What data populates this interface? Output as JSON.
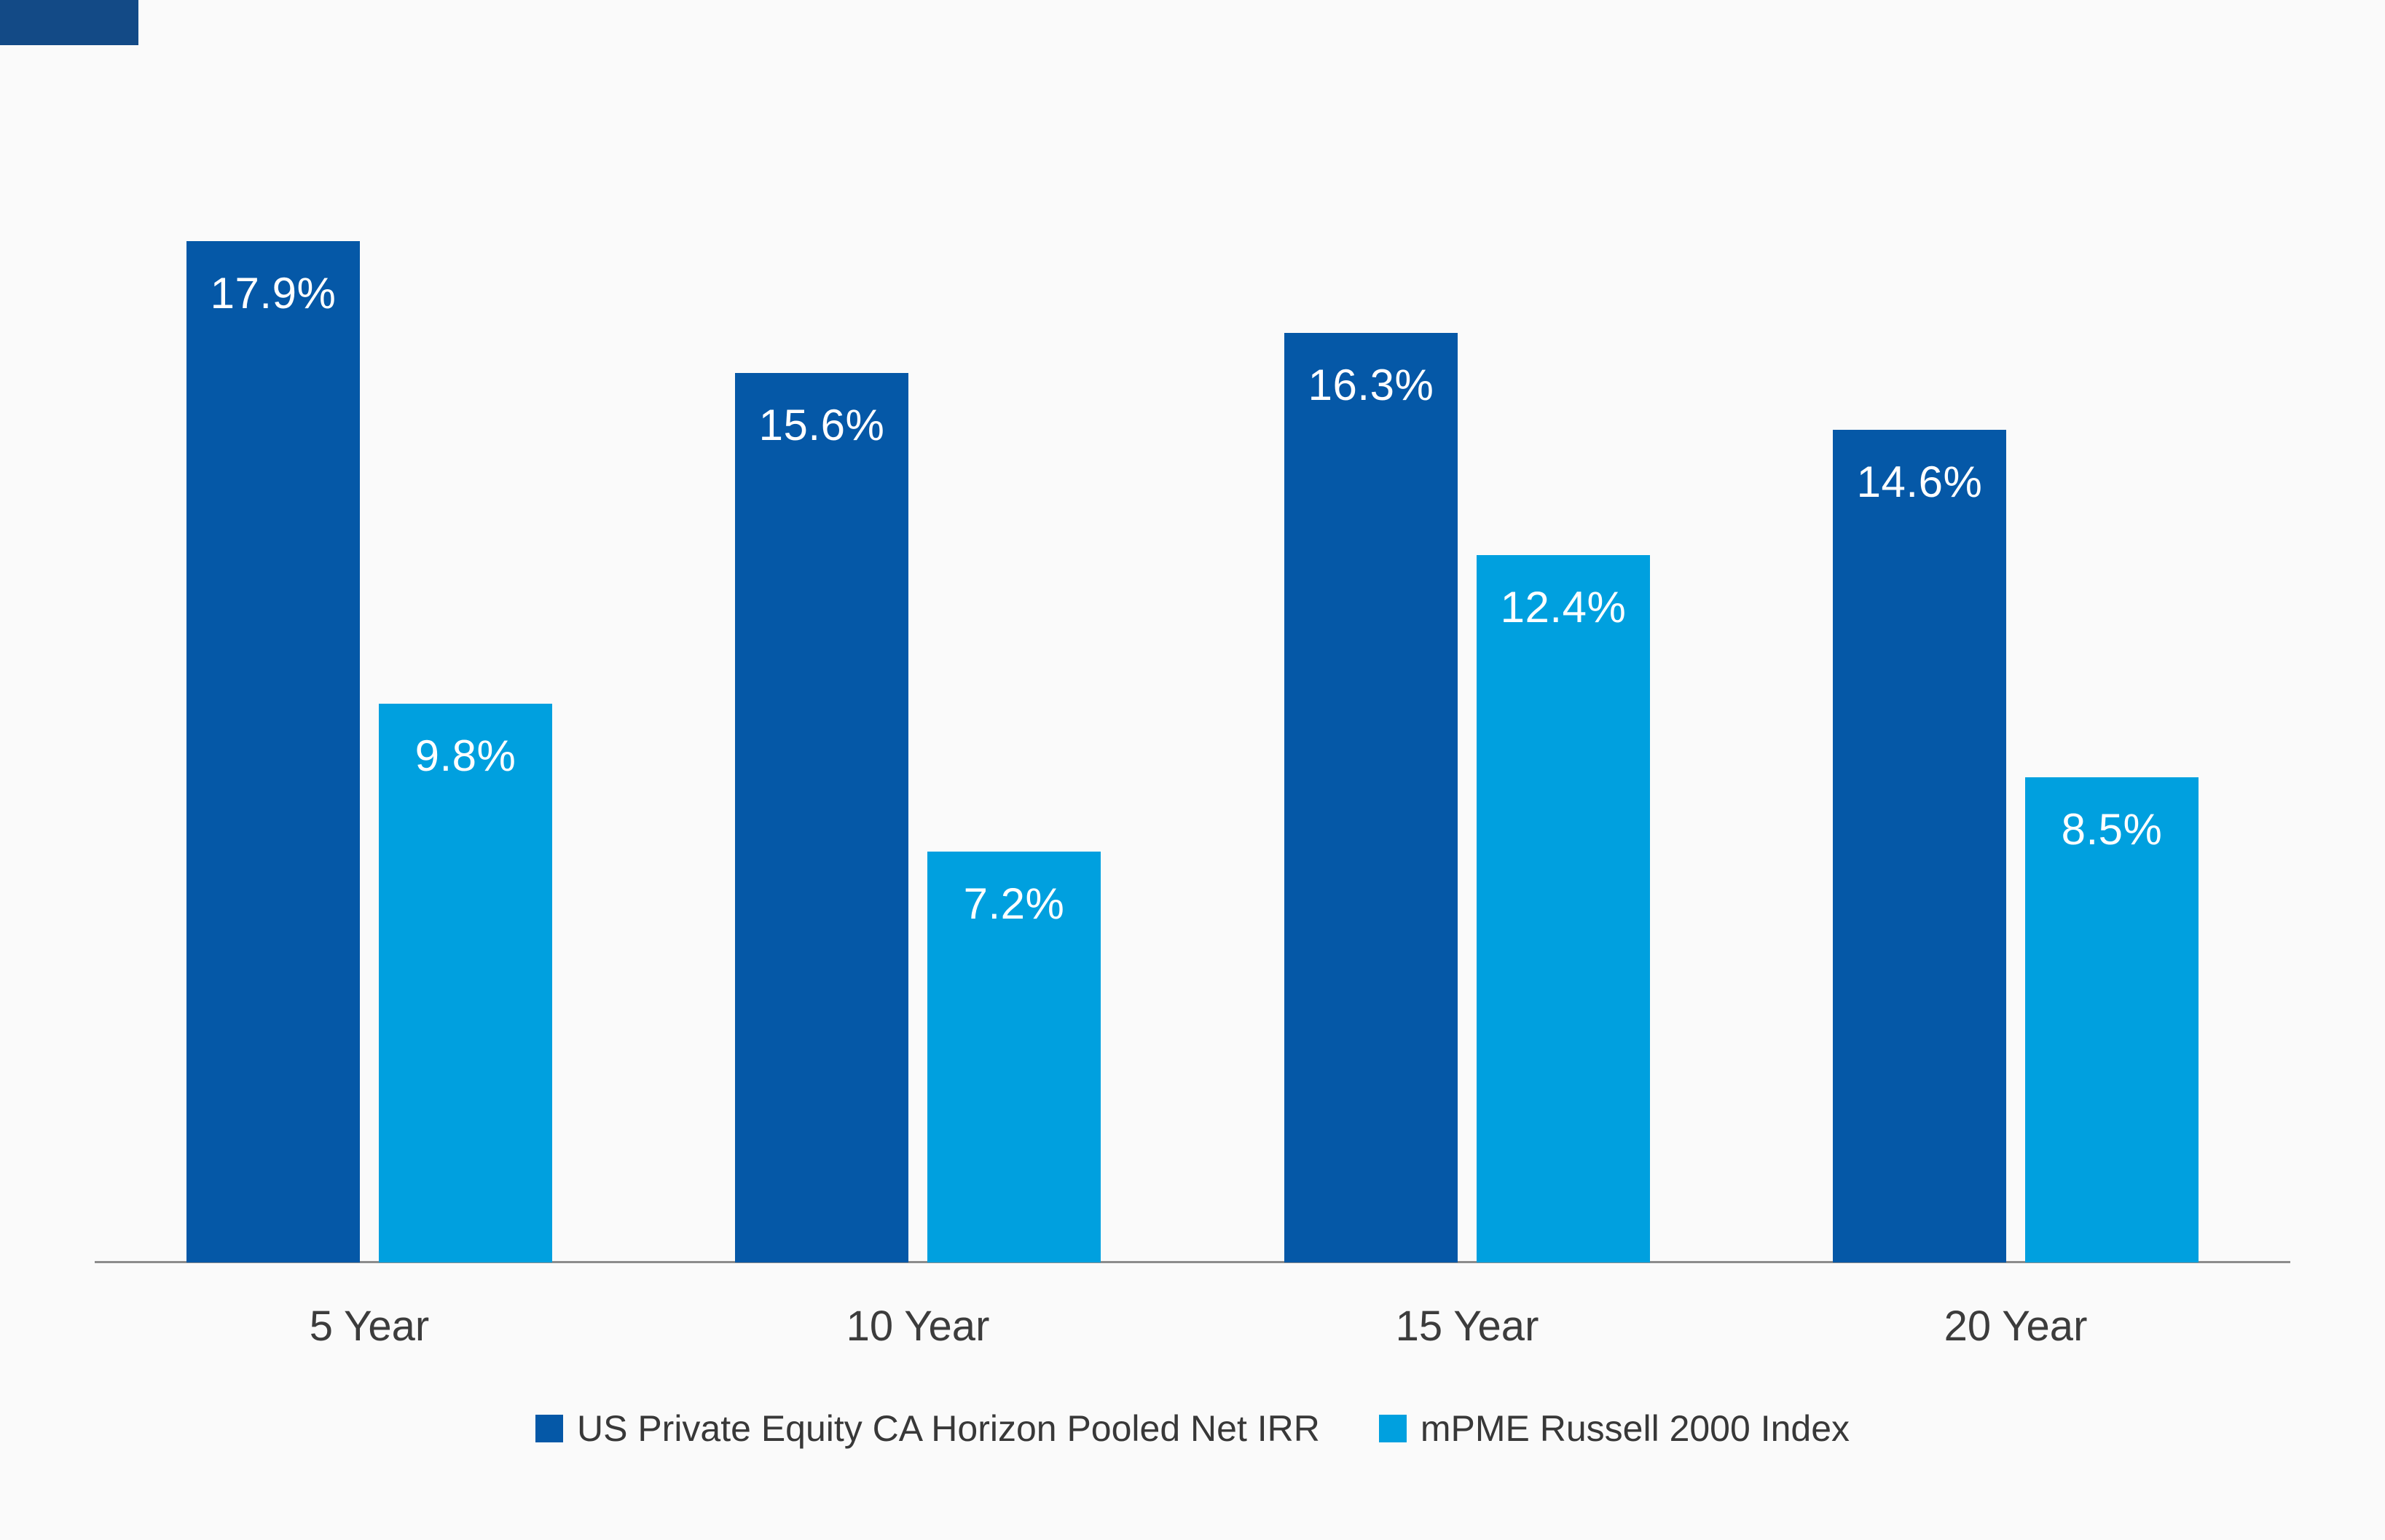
{
  "canvas": {
    "background": "#FAFAFA",
    "corner_mark_color": "#134A86"
  },
  "chart_data": {
    "type": "bar",
    "categories": [
      "5 Year",
      "10 Year",
      "15 Year",
      "20 Year"
    ],
    "series": [
      {
        "name": "US Private Equity CA Horizon Pooled Net IRR",
        "color": "#0558A7",
        "values": [
          17.9,
          15.6,
          16.3,
          14.6
        ],
        "value_labels": [
          "17.9%",
          "15.6%",
          "16.3%",
          "14.6%"
        ]
      },
      {
        "name": "mPME Russell 2000 Index",
        "color": "#00A0DF",
        "values": [
          9.8,
          7.2,
          12.4,
          8.5
        ],
        "value_labels": [
          "9.8%",
          "7.2%",
          "12.4%",
          "8.5%"
        ]
      }
    ],
    "title": "",
    "xlabel": "",
    "ylabel": "",
    "ylim": [
      0,
      22
    ],
    "grid": false,
    "y_axis_visible": false,
    "x_axis_line_color": "#8C8C8C",
    "value_label_color": "#FFFFFF",
    "tick_label_color": "#3C3C3C",
    "legend_position": "bottom",
    "legend_text_color": "#383838"
  }
}
